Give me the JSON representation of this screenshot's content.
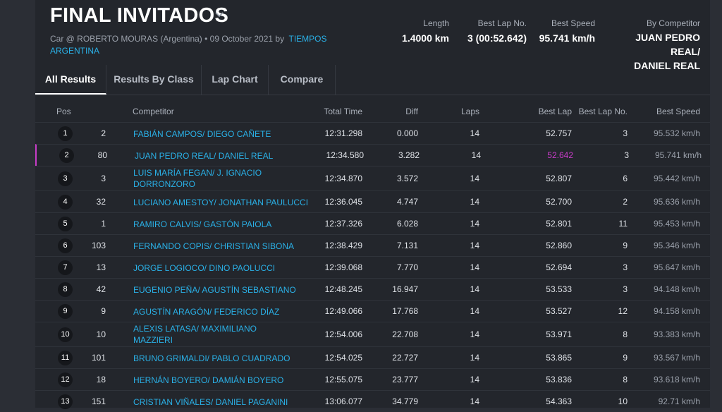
{
  "event": {
    "title": "FINAL INVITADOS",
    "subtitle_prefix": "Car @ ROBERTO MOURAS (Argentina) • 09 October 2021 by",
    "organizer": "TIEMPOS ARGENTINA"
  },
  "stats": {
    "length_label": "Length",
    "length_value": "1.4000 km",
    "best_lap_no_label": "Best Lap No.",
    "best_lap_no_value": "3 (00:52.642)",
    "best_speed_label": "Best Speed",
    "best_speed_value": "95.741 km/h",
    "by_competitor_label": "By Competitor",
    "by_competitor_line1": "JUAN PEDRO REAL/",
    "by_competitor_line2": "DANIEL REAL"
  },
  "tabs": [
    {
      "label": "All Results",
      "active": true
    },
    {
      "label": "Results By Class"
    },
    {
      "label": "Lap Chart"
    },
    {
      "label": "Compare"
    }
  ],
  "columns": {
    "pos": "Pos",
    "competitor": "Competitor",
    "total_time": "Total Time",
    "diff": "Diff",
    "laps": "Laps",
    "best_lap": "Best Lap",
    "best_lap_no": "Best Lap No.",
    "best_speed": "Best Speed"
  },
  "rows": [
    {
      "pos": "1",
      "num": "2",
      "name": "FABIÁN CAMPOS/ DIEGO CAÑETE",
      "total": "12:31.298",
      "diff": "0.000",
      "laps": "14",
      "best": "52.757",
      "best_no": "3",
      "speed": "95.532 km/h"
    },
    {
      "pos": "2",
      "num": "80",
      "name": "JUAN PEDRO REAL/ DANIEL REAL",
      "total": "12:34.580",
      "diff": "3.282",
      "laps": "14",
      "best": "52.642",
      "best_no": "3",
      "speed": "95.741 km/h",
      "fastest": true
    },
    {
      "pos": "3",
      "num": "3",
      "name": "LUIS MARÍA FEGAN/ J. IGNACIO DORRONZORO",
      "total": "12:34.870",
      "diff": "3.572",
      "laps": "14",
      "best": "52.807",
      "best_no": "6",
      "speed": "95.442 km/h"
    },
    {
      "pos": "4",
      "num": "32",
      "name": "LUCIANO AMESTOY/ JONATHAN PAULUCCI",
      "total": "12:36.045",
      "diff": "4.747",
      "laps": "14",
      "best": "52.700",
      "best_no": "2",
      "speed": "95.636 km/h"
    },
    {
      "pos": "5",
      "num": "1",
      "name": "RAMIRO CALVIS/ GASTÓN PAIOLA",
      "total": "12:37.326",
      "diff": "6.028",
      "laps": "14",
      "best": "52.801",
      "best_no": "11",
      "speed": "95.453 km/h"
    },
    {
      "pos": "6",
      "num": "103",
      "name": "FERNANDO COPIS/ CHRISTIAN SIBONA",
      "total": "12:38.429",
      "diff": "7.131",
      "laps": "14",
      "best": "52.860",
      "best_no": "9",
      "speed": "95.346 km/h"
    },
    {
      "pos": "7",
      "num": "13",
      "name": "JORGE LOGIOCO/ DINO PAOLUCCI",
      "total": "12:39.068",
      "diff": "7.770",
      "laps": "14",
      "best": "52.694",
      "best_no": "3",
      "speed": "95.647 km/h"
    },
    {
      "pos": "8",
      "num": "42",
      "name": "EUGENIO PEÑA/ AGUSTÍN SEBASTIANO",
      "total": "12:48.245",
      "diff": "16.947",
      "laps": "14",
      "best": "53.533",
      "best_no": "3",
      "speed": "94.148 km/h"
    },
    {
      "pos": "9",
      "num": "9",
      "name": "AGUSTÍN ARAGÓN/ FEDERICO DÍAZ",
      "total": "12:49.066",
      "diff": "17.768",
      "laps": "14",
      "best": "53.527",
      "best_no": "12",
      "speed": "94.158 km/h"
    },
    {
      "pos": "10",
      "num": "10",
      "name": "ALEXIS LATASA/ MAXIMILIANO MAZZIERI",
      "total": "12:54.006",
      "diff": "22.708",
      "laps": "14",
      "best": "53.971",
      "best_no": "8",
      "speed": "93.383 km/h"
    },
    {
      "pos": "11",
      "num": "101",
      "name": "BRUNO GRIMALDI/ PABLO CUADRADO",
      "total": "12:54.025",
      "diff": "22.727",
      "laps": "14",
      "best": "53.865",
      "best_no": "9",
      "speed": "93.567 km/h"
    },
    {
      "pos": "12",
      "num": "18",
      "name": "HERNÁN BOYERO/ DAMIÁN BOYERO",
      "total": "12:55.075",
      "diff": "23.777",
      "laps": "14",
      "best": "53.836",
      "best_no": "8",
      "speed": "93.618 km/h"
    },
    {
      "pos": "13",
      "num": "151",
      "name": "CRISTIAN VIÑALES/ DANIEL PAGANINI",
      "total": "13:06.077",
      "diff": "34.779",
      "laps": "14",
      "best": "54.363",
      "best_no": "10",
      "speed": "92.71 km/h"
    }
  ]
}
